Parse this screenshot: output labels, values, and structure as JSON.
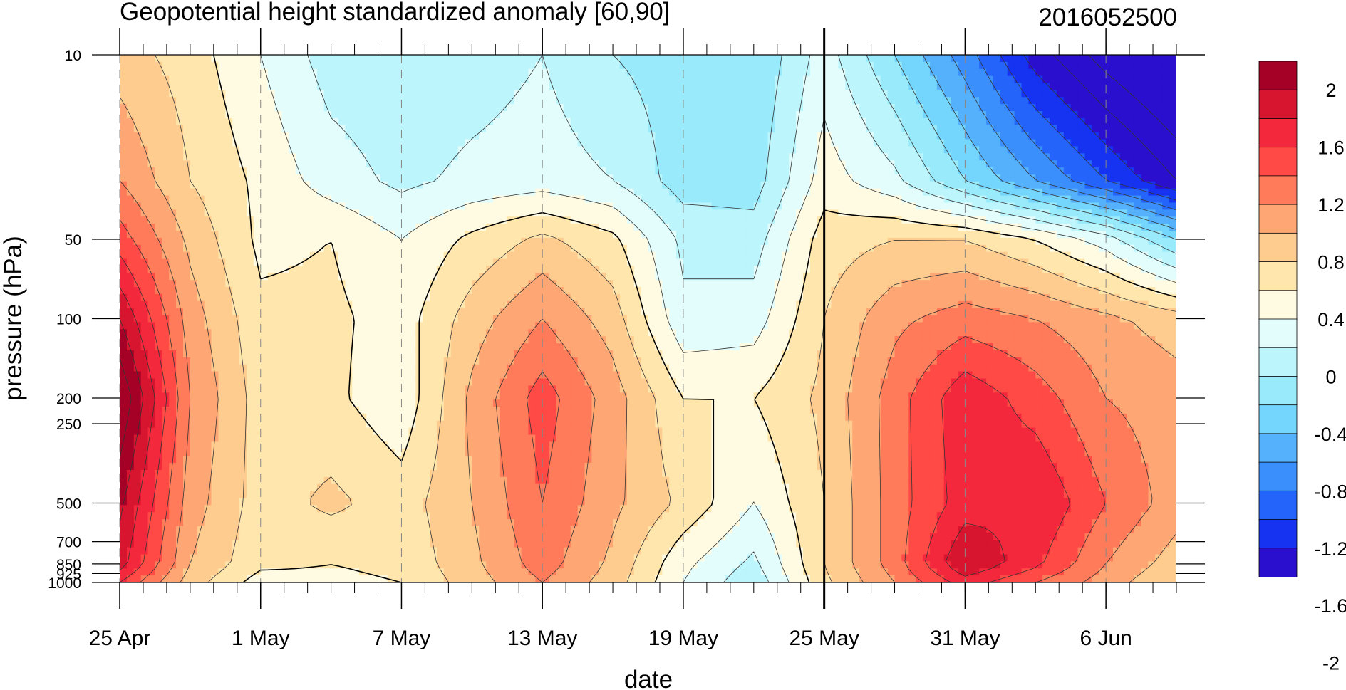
{
  "chart_data": {
    "type": "heatmap",
    "title": "Geopotential height standardized anomaly [60,90]",
    "run_label": "2016052500",
    "xlabel": "date",
    "ylabel": "pressure (hPa)",
    "x_start_date": "2016-04-25",
    "x_end_date": "2016-06-09",
    "x_ticks": [
      "25 Apr",
      "1 May",
      "7 May",
      "13 May",
      "19 May",
      "25 May",
      "31 May",
      "6 Jun"
    ],
    "y_ticks": [
      "10",
      "50",
      "100",
      "200",
      "250",
      "500",
      "700",
      "850",
      "925",
      "1000"
    ],
    "y_scale": "log",
    "ylim": [
      1000,
      10
    ],
    "forecast_start_line": "25 May",
    "colorbar_labels": [
      "2",
      "1.6",
      "1.2",
      "0.8",
      "0.4",
      "0",
      "-0.4",
      "-0.8",
      "-1.2",
      "-1.6",
      "-2"
    ],
    "colorbar_colors": [
      "#a50026",
      "#d7152e",
      "#f4283c",
      "#ff4a45",
      "#ff7b5a",
      "#ffa774",
      "#ffcc8f",
      "#ffe6ad",
      "#fffbe2",
      "#e3fdfd",
      "#bcf5fb",
      "#99ebfb",
      "#74d5fd",
      "#55b1fc",
      "#3a8ffc",
      "#2464fb",
      "#1533f0",
      "#2b0fcf"
    ],
    "contour_levels": [
      -2.2,
      -2.0,
      -1.8,
      -1.6,
      -1.4,
      -1.2,
      -1.0,
      -0.8,
      -0.6,
      -0.4,
      -0.2,
      0,
      0.2,
      0.4,
      0.6,
      0.8,
      1.0,
      1.2,
      1.4,
      1.6,
      1.8,
      2.0,
      2.2
    ],
    "grid_dates": [
      "25 Apr",
      "28 Apr",
      "1 May",
      "4 May",
      "7 May",
      "10 May",
      "13 May",
      "16 May",
      "19 May",
      "22 May",
      "25 May",
      "28 May",
      "31 May",
      "3 Jun",
      "6 Jun",
      "9 Jun"
    ],
    "grid_levels": [
      10,
      30,
      50,
      100,
      200,
      500,
      850,
      1000
    ],
    "values": [
      [
        0.3,
        0.1,
        -0.2,
        -0.5,
        -0.55,
        -0.5,
        -0.4,
        -0.6,
        -0.7,
        -0.8,
        -0.3,
        -0.8,
        -1.3,
        -1.9,
        -2.3,
        -2.6
      ],
      [
        0.6,
        0.2,
        -0.05,
        -0.3,
        -0.45,
        -0.35,
        -0.3,
        -0.4,
        -0.7,
        -0.7,
        -0.1,
        -0.35,
        -0.8,
        -1.2,
        -1.6,
        -2.0
      ],
      [
        0.9,
        0.35,
        -0.05,
        0.0,
        -0.2,
        0.05,
        0.25,
        0.05,
        -0.45,
        -0.5,
        0.1,
        0.2,
        0.2,
        0.0,
        -0.3,
        -0.8
      ],
      [
        1.4,
        0.5,
        0.05,
        0.05,
        -0.1,
        0.3,
        0.6,
        0.3,
        -0.35,
        -0.3,
        0.2,
        0.55,
        0.7,
        0.6,
        0.45,
        0.3
      ],
      [
        1.8,
        0.6,
        0.1,
        0.05,
        -0.15,
        0.45,
        0.9,
        0.5,
        0.0,
        0.0,
        0.25,
        0.7,
        1.15,
        0.9,
        0.6,
        0.5
      ],
      [
        1.45,
        0.5,
        0.1,
        0.25,
        0.1,
        0.4,
        0.8,
        0.45,
        0.15,
        -0.2,
        0.2,
        0.7,
        1.1,
        1.2,
        0.8,
        0.5
      ],
      [
        1.3,
        0.4,
        0.05,
        0.0,
        0.05,
        0.35,
        0.7,
        0.35,
        -0.15,
        -0.45,
        0.2,
        0.7,
        1.4,
        1.05,
        0.6,
        0.3
      ],
      [
        1.0,
        0.3,
        -0.1,
        -0.05,
        0.0,
        0.3,
        0.6,
        0.3,
        -0.2,
        -0.55,
        0.15,
        0.6,
        1.1,
        0.8,
        0.5,
        0.2
      ]
    ]
  }
}
